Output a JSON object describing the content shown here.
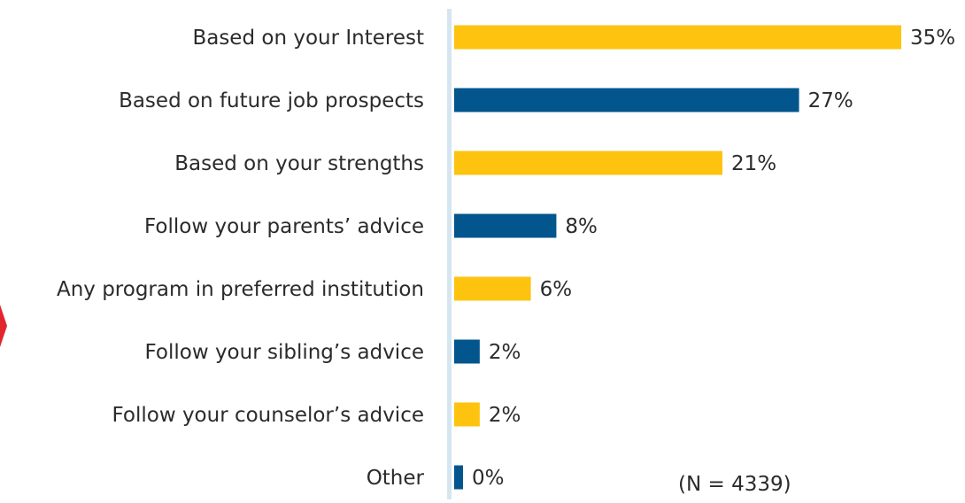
{
  "chart_data": {
    "type": "bar",
    "orientation": "horizontal",
    "categories": [
      "Based on your Interest",
      "Based on future job prospects",
      "Based on your strengths",
      "Follow your parents’ advice",
      "Any program in preferred institution",
      "Follow your sibling’s advice",
      "Follow your counselor’s advice",
      "Other"
    ],
    "values": [
      35,
      27,
      21,
      8,
      6,
      2,
      2,
      0
    ],
    "value_labels": [
      "35%",
      "27%",
      "21%",
      "8%",
      "6%",
      "2%",
      "2%",
      "0%"
    ],
    "bar_colors": [
      "#FDC30F",
      "#02568D",
      "#FDC30F",
      "#02568D",
      "#FDC30F",
      "#02568D",
      "#FDC30F",
      "#02568D"
    ],
    "xlim": [
      0,
      35
    ],
    "grid": false,
    "legend": "none",
    "annotation": "(N = 4339)",
    "axis_color": "#D6E6F1",
    "label_color": "#2B2B2B",
    "edge_marker_color": "#E3262E"
  }
}
